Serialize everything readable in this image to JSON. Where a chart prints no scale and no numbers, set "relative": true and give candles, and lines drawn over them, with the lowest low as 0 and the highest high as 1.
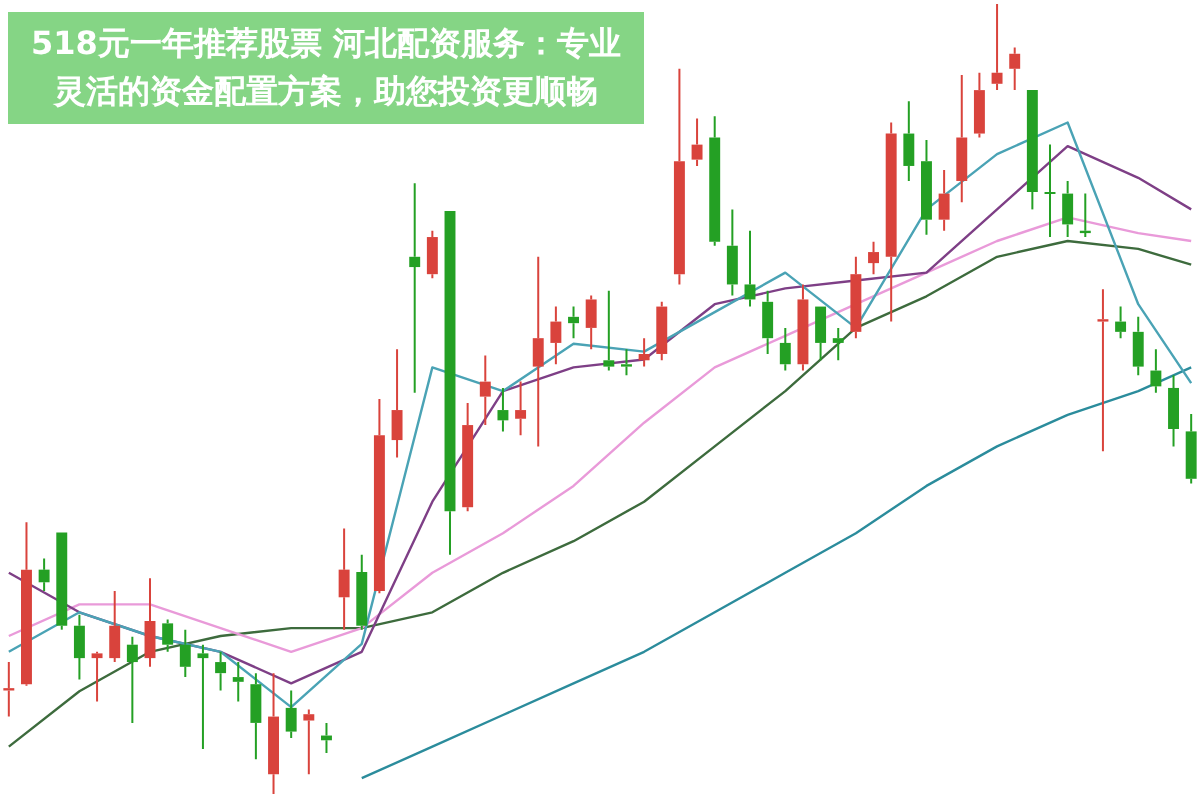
{
  "chart_data": {
    "type": "candlestick",
    "title": "518元一年推荐股票 河北配资服务：专业灵活的资金配置方案，助您投资更顺畅",
    "relative": true,
    "legend": false,
    "tick_labels": false,
    "categories": [
      null,
      null,
      null,
      null,
      null,
      null,
      null,
      null,
      null,
      null,
      null,
      null,
      null,
      null,
      null,
      null,
      null,
      null,
      null,
      null,
      null,
      null,
      null,
      null,
      null,
      null,
      null,
      null,
      null,
      null,
      null,
      null,
      null,
      null,
      null,
      null,
      null,
      null,
      null,
      null,
      null,
      null,
      null,
      null,
      null,
      null,
      null,
      null,
      null,
      null,
      null,
      null,
      null,
      null,
      null,
      null,
      null,
      null,
      null,
      null,
      null,
      null,
      null,
      null,
      null,
      null,
      null,
      null
    ],
    "ohlc": [
      [
        0.131,
        0.167,
        0.098,
        0.134
      ],
      [
        0.139,
        0.344,
        0.137,
        0.284
      ],
      [
        0.284,
        0.298,
        0.257,
        0.268
      ],
      [
        0.331,
        0.331,
        0.208,
        0.213
      ],
      [
        0.213,
        0.227,
        0.145,
        0.172
      ],
      [
        0.172,
        0.18,
        0.117,
        0.178
      ],
      [
        0.172,
        0.257,
        0.167,
        0.213
      ],
      [
        0.189,
        0.199,
        0.09,
        0.167
      ],
      [
        0.172,
        0.273,
        0.161,
        0.219
      ],
      [
        0.216,
        0.221,
        0.18,
        0.189
      ],
      [
        0.189,
        0.208,
        0.148,
        0.161
      ],
      [
        0.178,
        0.189,
        0.057,
        0.172
      ],
      [
        0.167,
        0.18,
        0.131,
        0.153
      ],
      [
        0.148,
        0.167,
        0.117,
        0.142
      ],
      [
        0.139,
        0.153,
        0.044,
        0.09
      ],
      [
        0.025,
        0.153,
        0,
        0.098
      ],
      [
        0.109,
        0.131,
        0.071,
        0.079
      ],
      [
        0.093,
        0.107,
        0.025,
        0.101
      ],
      [
        0.074,
        0.09,
        0.052,
        0.068
      ],
      [
        0.249,
        0.336,
        0.208,
        0.284
      ],
      [
        0.281,
        0.303,
        0.208,
        0.213
      ],
      [
        0.257,
        0.5,
        0.254,
        0.454
      ],
      [
        0.448,
        0.563,
        0.426,
        0.486
      ],
      [
        0.68,
        0.773,
        0.508,
        0.667
      ],
      [
        0.658,
        0.713,
        0.653,
        0.705
      ],
      [
        0.738,
        0.738,
        0.303,
        0.358
      ],
      [
        0.363,
        0.495,
        0.358,
        0.467
      ],
      [
        0.503,
        0.555,
        0.467,
        0.522
      ],
      [
        0.486,
        0.514,
        0.459,
        0.473
      ],
      [
        0.475,
        0.522,
        0.454,
        0.486
      ],
      [
        0.541,
        0.68,
        0.44,
        0.577
      ],
      [
        0.571,
        0.617,
        0.544,
        0.598
      ],
      [
        0.604,
        0.617,
        0.577,
        0.596
      ],
      [
        0.59,
        0.631,
        0.563,
        0.626
      ],
      [
        0.549,
        0.637,
        0.536,
        0.541
      ],
      [
        0.544,
        0.563,
        0.53,
        0.541
      ],
      [
        0.549,
        0.577,
        0.541,
        0.557
      ],
      [
        0.557,
        0.623,
        0.549,
        0.617
      ],
      [
        0.658,
        0.918,
        0.645,
        0.801
      ],
      [
        0.803,
        0.855,
        0.795,
        0.822
      ],
      [
        0.831,
        0.858,
        0.694,
        0.699
      ],
      [
        0.694,
        0.74,
        0.631,
        0.645
      ],
      [
        0.645,
        0.713,
        0.617,
        0.626
      ],
      [
        0.623,
        0.637,
        0.557,
        0.577
      ],
      [
        0.571,
        0.59,
        0.536,
        0.544
      ],
      [
        0.544,
        0.645,
        0.536,
        0.626
      ],
      [
        0.617,
        0.617,
        0.549,
        0.571
      ],
      [
        0.577,
        0.59,
        0.549,
        0.571
      ],
      [
        0.585,
        0.68,
        0.577,
        0.658
      ],
      [
        0.672,
        0.699,
        0.658,
        0.686
      ],
      [
        0.68,
        0.85,
        0.598,
        0.836
      ],
      [
        0.836,
        0.877,
        0.776,
        0.795
      ],
      [
        0.801,
        0.828,
        0.708,
        0.727
      ],
      [
        0.727,
        0.79,
        0.713,
        0.76
      ],
      [
        0.776,
        0.91,
        0.749,
        0.831
      ],
      [
        0.836,
        0.913,
        0.831,
        0.891
      ],
      [
        0.899,
        1,
        0.891,
        0.913
      ],
      [
        0.918,
        0.945,
        0.891,
        0.937
      ],
      [
        0.891,
        0.891,
        0.74,
        0.762
      ],
      [
        0.762,
        0.822,
        0.705,
        0.76
      ],
      [
        0.76,
        0.776,
        0.705,
        0.721
      ],
      [
        0.713,
        0.76,
        0.705,
        0.71
      ],
      [
        0.598,
        0.639,
        0.434,
        0.601
      ],
      [
        0.598,
        0.617,
        0.577,
        0.585
      ],
      [
        0.585,
        0.604,
        0.53,
        0.541
      ],
      [
        0.536,
        0.563,
        0.508,
        0.516
      ],
      [
        0.514,
        0.53,
        0.44,
        0.462
      ],
      [
        0.459,
        0.481,
        0.393,
        0.399
      ]
    ],
    "series": [
      {
        "type": "line",
        "color": "#4aa3b5",
        "values": [
          0.18,
          null,
          null,
          null,
          0.23,
          null,
          null,
          null,
          0.2,
          null,
          null,
          null,
          0.18,
          null,
          null,
          null,
          0.11,
          null,
          null,
          null,
          0.19,
          null,
          null,
          null,
          0.54,
          null,
          null,
          null,
          0.51,
          null,
          null,
          null,
          0.57,
          null,
          null,
          null,
          0.56,
          null,
          null,
          null,
          0.61,
          null,
          null,
          null,
          0.66,
          null,
          null,
          null,
          0.59,
          null,
          null,
          null,
          0.74,
          null,
          null,
          null,
          0.81,
          null,
          null,
          null,
          0.85,
          null,
          null,
          null,
          0.62,
          null,
          null,
          0.52
        ]
      },
      {
        "type": "line",
        "color": "#7e3f86",
        "values": [
          0.28,
          null,
          null,
          null,
          0.23,
          null,
          null,
          null,
          0.2,
          null,
          null,
          null,
          0.18,
          null,
          null,
          null,
          0.14,
          null,
          null,
          null,
          0.18,
          null,
          null,
          null,
          0.37,
          null,
          null,
          null,
          0.51,
          null,
          null,
          null,
          0.54,
          null,
          null,
          null,
          0.55,
          null,
          null,
          null,
          0.62,
          null,
          null,
          null,
          0.64,
          null,
          null,
          null,
          0.65,
          null,
          null,
          null,
          0.66,
          null,
          null,
          null,
          0.74,
          null,
          null,
          null,
          0.82,
          null,
          null,
          null,
          0.78,
          null,
          null,
          0.74
        ]
      },
      {
        "type": "line",
        "color": "#e99ad9",
        "values": [
          0.2,
          null,
          null,
          null,
          0.24,
          null,
          null,
          null,
          0.24,
          null,
          null,
          null,
          0.21,
          null,
          null,
          null,
          0.18,
          null,
          null,
          null,
          0.21,
          null,
          null,
          null,
          0.28,
          null,
          null,
          null,
          0.33,
          null,
          null,
          null,
          0.39,
          null,
          null,
          null,
          0.47,
          null,
          null,
          null,
          0.54,
          null,
          null,
          null,
          0.58,
          null,
          null,
          null,
          0.62,
          null,
          null,
          null,
          0.66,
          null,
          null,
          null,
          0.7,
          null,
          null,
          null,
          0.73,
          null,
          null,
          null,
          0.71,
          null,
          null,
          0.7
        ]
      },
      {
        "type": "line",
        "color": "#3d6b3d",
        "values": [
          0.06,
          null,
          null,
          null,
          0.13,
          null,
          null,
          null,
          0.18,
          null,
          null,
          null,
          0.2,
          null,
          null,
          null,
          0.21,
          null,
          null,
          null,
          0.21,
          null,
          null,
          null,
          0.23,
          null,
          null,
          null,
          0.28,
          null,
          null,
          null,
          0.32,
          null,
          null,
          null,
          0.37,
          null,
          null,
          null,
          0.44,
          null,
          null,
          null,
          0.51,
          null,
          null,
          null,
          0.59,
          null,
          null,
          null,
          0.63,
          null,
          null,
          null,
          0.68,
          null,
          null,
          null,
          0.7,
          null,
          null,
          null,
          0.69,
          null,
          null,
          0.67
        ]
      },
      {
        "type": "line",
        "color": "#2b8c9c",
        "values": [
          null,
          null,
          null,
          null,
          null,
          null,
          null,
          null,
          null,
          null,
          null,
          null,
          null,
          null,
          null,
          null,
          null,
          null,
          null,
          null,
          0.02,
          null,
          null,
          null,
          0.06,
          null,
          null,
          null,
          0.1,
          null,
          null,
          null,
          0.14,
          null,
          null,
          null,
          0.18,
          null,
          null,
          null,
          0.23,
          null,
          null,
          null,
          0.28,
          null,
          null,
          null,
          0.33,
          null,
          null,
          null,
          0.39,
          null,
          null,
          null,
          0.44,
          null,
          null,
          null,
          0.48,
          null,
          null,
          null,
          0.51,
          null,
          null,
          0.54
        ]
      }
    ]
  }
}
